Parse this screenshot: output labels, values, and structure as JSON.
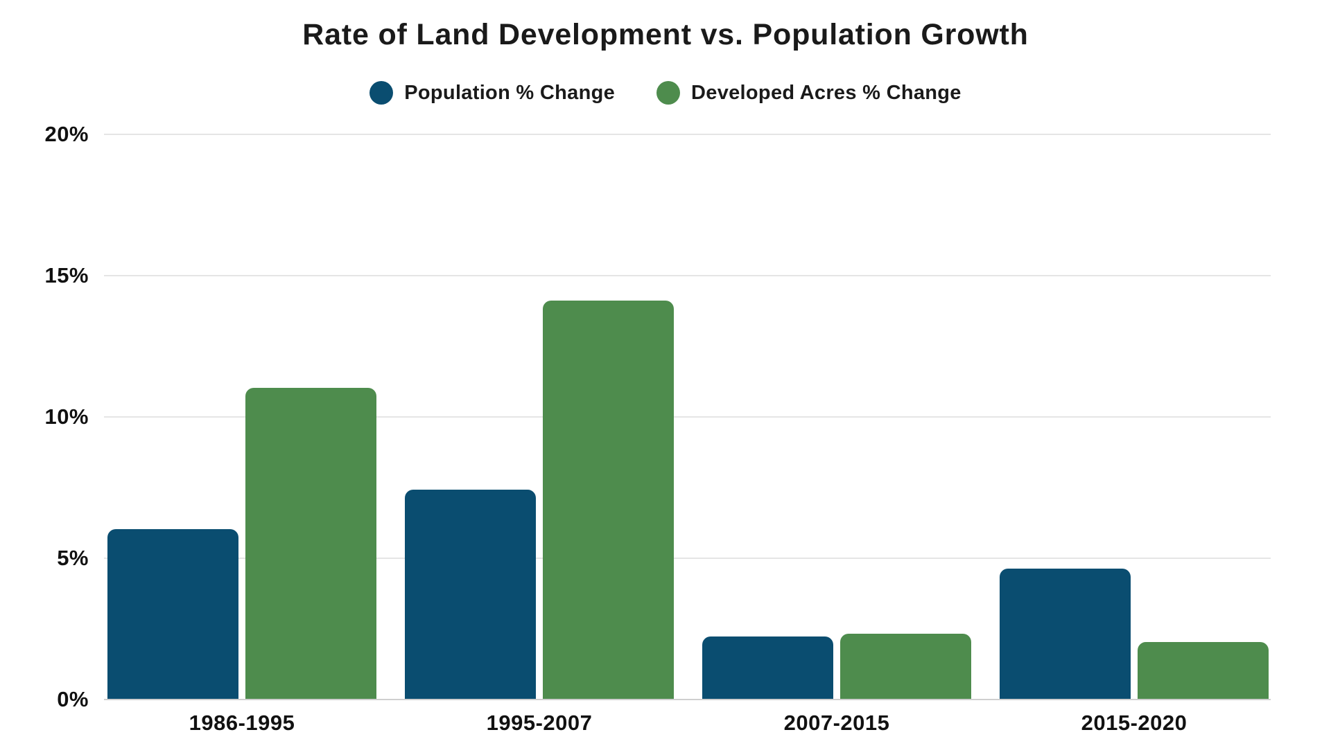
{
  "title": "Rate of Land Development vs. Population Growth",
  "legend": {
    "items": [
      {
        "label": "Population % Change"
      },
      {
        "label": "Developed Acres % Change"
      }
    ]
  },
  "y_axis": {
    "tick_labels": [
      "20%",
      "15%",
      "10%",
      "5%",
      "0%"
    ],
    "max": 20,
    "min": 0
  },
  "colors": {
    "population": "#0A4D70",
    "acres": "#4E8C4D",
    "gridline": "#E5E5E5",
    "baseline": "#CFCFCF",
    "text": "#1A1A1A",
    "background": "#FFFFFF"
  },
  "chart_data": {
    "type": "bar",
    "title": "Rate of Land Development vs. Population Growth",
    "categories": [
      "1986-1995",
      "1995-2007",
      "2007-2015",
      "2015-2020"
    ],
    "series": [
      {
        "name": "Population % Change",
        "color": "#0A4D70",
        "values": [
          6.0,
          7.4,
          2.2,
          4.6
        ]
      },
      {
        "name": "Developed Acres % Change",
        "color": "#4E8C4D",
        "values": [
          11.0,
          14.1,
          2.3,
          2.0
        ]
      }
    ],
    "xlabel": "",
    "ylabel": "",
    "ylim": [
      0,
      20
    ],
    "grid": true,
    "legend_position": "top"
  }
}
